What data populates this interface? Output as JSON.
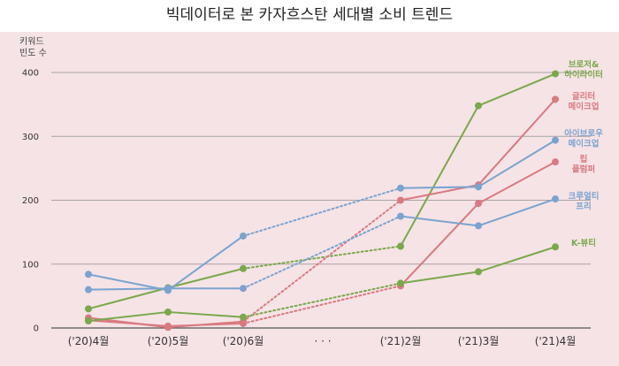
{
  "chart_data": {
    "type": "line",
    "title": "빅데이터로 본 카자흐스탄 세대별 소비 트렌드",
    "ylabel": "키워드 빈도 수",
    "ylim": [
      0,
      400
    ],
    "yticks": [
      "0",
      "100",
      "200",
      "300",
      "400"
    ],
    "categories": [
      "('20)4월",
      "('20)5월",
      "('20)6월",
      "· · ·",
      "('21)2월",
      "('21)3월",
      "('21)4월"
    ],
    "grid": true,
    "background_color": "#f6e3e6",
    "series": [
      {
        "name": "브로저& 하이라이터",
        "color": "#7aa84b",
        "values": [
          30,
          63,
          93,
          null,
          128,
          348,
          398
        ]
      },
      {
        "name": "글리터 메이크업",
        "color": "#d97a80",
        "values": [
          16,
          1,
          10,
          null,
          200,
          224,
          358
        ]
      },
      {
        "name": "아이브로우 메이크업",
        "color": "#7aa3cf",
        "values": [
          84,
          59,
          144,
          null,
          219,
          221,
          294
        ]
      },
      {
        "name": "립 플럼퍼",
        "color": "#d97a80",
        "values": [
          12,
          3,
          7,
          null,
          66,
          195,
          260
        ]
      },
      {
        "name": "크루얼티 프리",
        "color": "#7aa3cf",
        "values": [
          60,
          62,
          62,
          null,
          175,
          160,
          202
        ]
      },
      {
        "name": "K-뷰티",
        "color": "#7aa84b",
        "values": [
          11,
          25,
          17,
          null,
          70,
          88,
          127
        ]
      }
    ]
  }
}
